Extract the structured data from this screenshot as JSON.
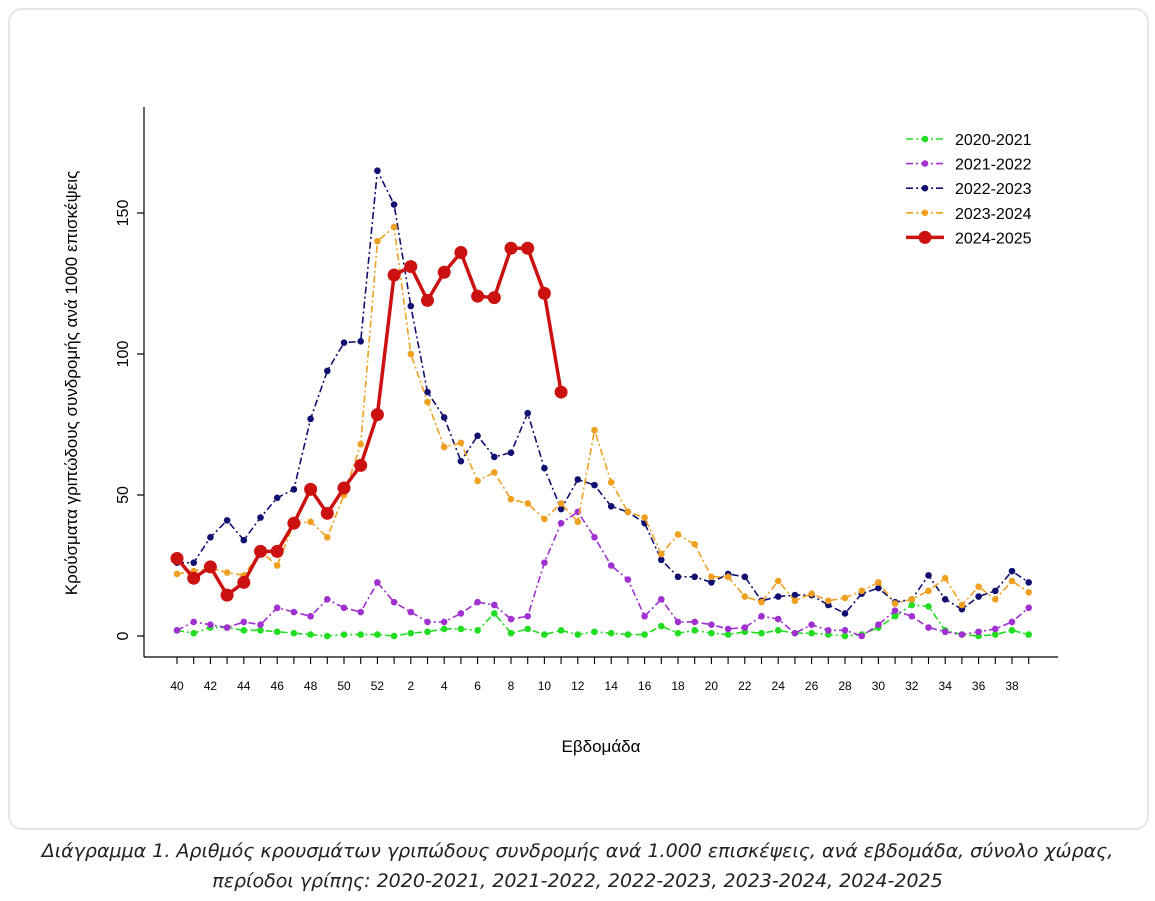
{
  "chart_data": {
    "type": "line",
    "xlabel": "Εβδομάδα",
    "ylabel": "Κρούσματα γριπώδους συνδρομής ανά 1000 επισκέψεις",
    "ylim": [
      0,
      185
    ],
    "yticks": [
      0,
      50,
      100,
      150
    ],
    "x_week_labels": [
      "40",
      "41",
      "42",
      "43",
      "44",
      "45",
      "46",
      "47",
      "48",
      "49",
      "50",
      "51",
      "52",
      "1",
      "2",
      "3",
      "4",
      "5",
      "6",
      "7",
      "8",
      "9",
      "10",
      "11",
      "12",
      "13",
      "14",
      "15",
      "16",
      "17",
      "18",
      "19",
      "20",
      "21",
      "22",
      "23",
      "24",
      "25",
      "26",
      "27",
      "28",
      "29",
      "30",
      "31",
      "32",
      "33",
      "34",
      "35",
      "36",
      "37",
      "38",
      "39"
    ],
    "x_tick_labels": [
      "40",
      "42",
      "44",
      "46",
      "48",
      "50",
      "52",
      "2",
      "4",
      "6",
      "8",
      "10",
      "12",
      "14",
      "16",
      "18",
      "20",
      "22",
      "24",
      "26",
      "28",
      "30",
      "32",
      "34",
      "36",
      "38"
    ],
    "grid": false,
    "legend_position": "top-right",
    "series": [
      {
        "name": "2020-2021",
        "color": "#22dd22",
        "style": "dashdot",
        "values": [
          2,
          1,
          3,
          3,
          2,
          2,
          1.5,
          1,
          0.5,
          0,
          0.5,
          0.5,
          0.5,
          0,
          1,
          1.5,
          2.5,
          2.5,
          2,
          8,
          1,
          2.5,
          0.5,
          2,
          0.5,
          1.5,
          1,
          0.5,
          0.5,
          3.5,
          1,
          2,
          1,
          0.5,
          1.5,
          1,
          2,
          1,
          1,
          0.5,
          0,
          0.5,
          3,
          7,
          11,
          10.5,
          2,
          0.5,
          0,
          0.5,
          2,
          0.5
        ]
      },
      {
        "name": "2021-2022",
        "color": "#a030d0",
        "style": "dashdot",
        "values": [
          2,
          5,
          4,
          3,
          5,
          4,
          10,
          8.5,
          7,
          13,
          10,
          8.5,
          19,
          12,
          8.5,
          5,
          5,
          8,
          12,
          11,
          6,
          7,
          26,
          40,
          44,
          35,
          25,
          20,
          7,
          13,
          5,
          5,
          4,
          2.5,
          3,
          7,
          6,
          1,
          4,
          2,
          2,
          0,
          4,
          9,
          7,
          3,
          1.5,
          0.5,
          1.5,
          2.5,
          5,
          10
        ]
      },
      {
        "name": "2022-2023",
        "color": "#101070",
        "style": "dashdot",
        "values": [
          26,
          26,
          35,
          41,
          34,
          42,
          49,
          52,
          77,
          94,
          104,
          104.5,
          165,
          153,
          117,
          86.5,
          77.5,
          62,
          71,
          63.5,
          65,
          79,
          59.5,
          45,
          55.5,
          53.5,
          46,
          44,
          40,
          27,
          21,
          21,
          19,
          22,
          21,
          12.5,
          14,
          14.5,
          14.5,
          11,
          8,
          15,
          17,
          12,
          13,
          21.5,
          13,
          9.5,
          14,
          16,
          23,
          19
        ]
      },
      {
        "name": "2023-2024",
        "color": "#f0a020",
        "style": "dashdot",
        "values": [
          22,
          23,
          24,
          22.5,
          21.5,
          30,
          25,
          40,
          40.5,
          35,
          50,
          68,
          140,
          145,
          100,
          83,
          67,
          68.5,
          55,
          58,
          48.5,
          47,
          41.5,
          47,
          40.5,
          73,
          54.5,
          44,
          42,
          29,
          36,
          32.5,
          21,
          21,
          14,
          12,
          19.5,
          12.5,
          15,
          12.5,
          13.5,
          16,
          19,
          11.5,
          13,
          16,
          20.5,
          11,
          17.5,
          13,
          19.5,
          15.5
        ]
      },
      {
        "name": "2024-2025",
        "color": "#cc1111",
        "style": "solid",
        "values": [
          27.5,
          20.5,
          24.5,
          14.5,
          19,
          30,
          30,
          40,
          52,
          43.5,
          52.5,
          60.5,
          78.5,
          128,
          131,
          119,
          129,
          136,
          120.5,
          120,
          137.5,
          137.5,
          121.5,
          86.5
        ]
      }
    ]
  },
  "caption": {
    "line1": "Διάγραμμα 1. Αριθμός κρουσμάτων γριπώδους συνδρομής ανά 1.000 επισκέψεις, ανά εβδομάδα, σύνολο χώρας,",
    "line2": "περίοδοι γρίπης: 2020-2021, 2021-2022, 2022-2023, 2023-2024, 2024-2025"
  }
}
